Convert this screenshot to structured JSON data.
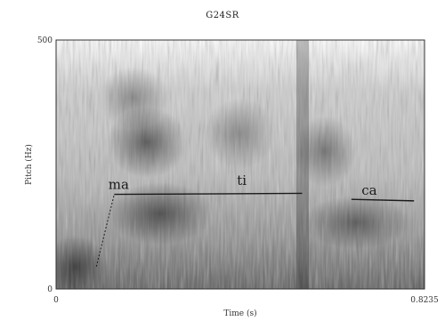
{
  "chart_data": {
    "type": "spectrogram",
    "title": "G24SR",
    "xlabel": "Time (s)",
    "ylabel": "Pitch (Hz)",
    "xlim": [
      0,
      0.8235
    ],
    "ylim": [
      0,
      500
    ],
    "x_tick_labels": [
      "0",
      "0.8235"
    ],
    "y_tick_labels": [
      "0",
      "500"
    ],
    "segments": [
      {
        "label": "ma",
        "label_time": 0.14,
        "pitch_line": [
          [
            0.09,
            45
          ],
          [
            0.13,
            190
          ],
          [
            0.55,
            192
          ]
        ]
      },
      {
        "label": "ti",
        "label_time": 0.415,
        "pitch_line": []
      },
      {
        "label": "ca",
        "label_time": 0.7,
        "pitch_line": [
          [
            0.66,
            180
          ],
          [
            0.8,
            177
          ]
        ]
      }
    ]
  }
}
